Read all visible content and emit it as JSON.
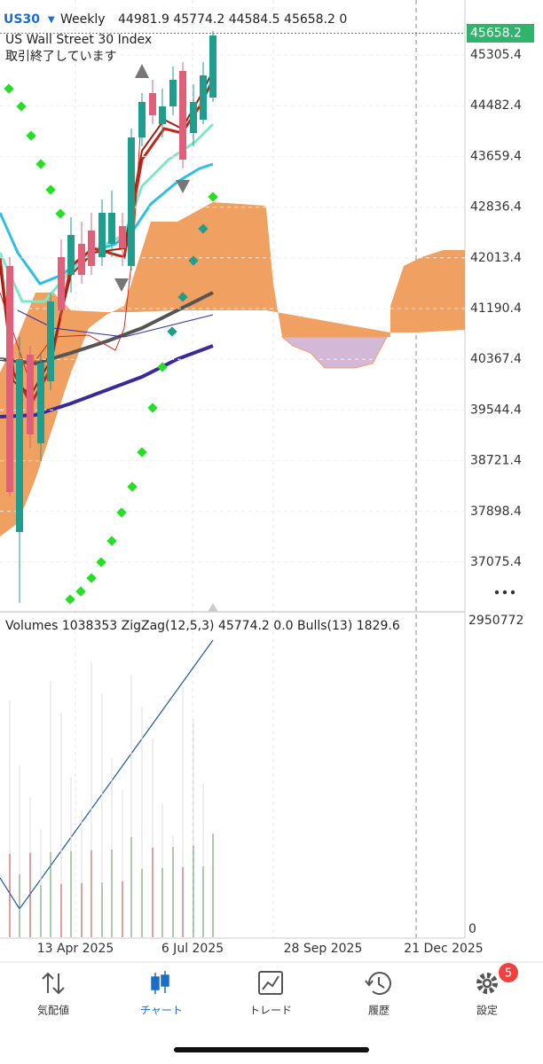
{
  "header": {
    "symbol": "US30",
    "period": "Weekly",
    "ohlc": "44981.9 45774.2 44584.5 45658.2 0",
    "name": "US Wall Street 30 Index",
    "status": "取引終了しています"
  },
  "price_axis": {
    "current": 45658.2,
    "ticks": [
      45305.4,
      44482.4,
      43659.4,
      42836.4,
      42013.4,
      41190.4,
      40367.4,
      39544.4,
      38721.4,
      37898.4,
      37075.4
    ]
  },
  "volume_panel": {
    "indicators": "Volumes 1038353 ZigZag(12,5,3) 45774.2 0.0 Bulls(13) 1829.6",
    "ticks": [
      2950772,
      0
    ]
  },
  "date_axis": [
    "13 Apr 2025",
    "6 Jul 2025",
    "28 Sep 2025",
    "21 Dec 2025"
  ],
  "tabs": [
    {
      "label": "気配値"
    },
    {
      "label": "チャート"
    },
    {
      "label": "トレード"
    },
    {
      "label": "履歴"
    },
    {
      "label": "設定"
    }
  ],
  "badge": "5"
}
